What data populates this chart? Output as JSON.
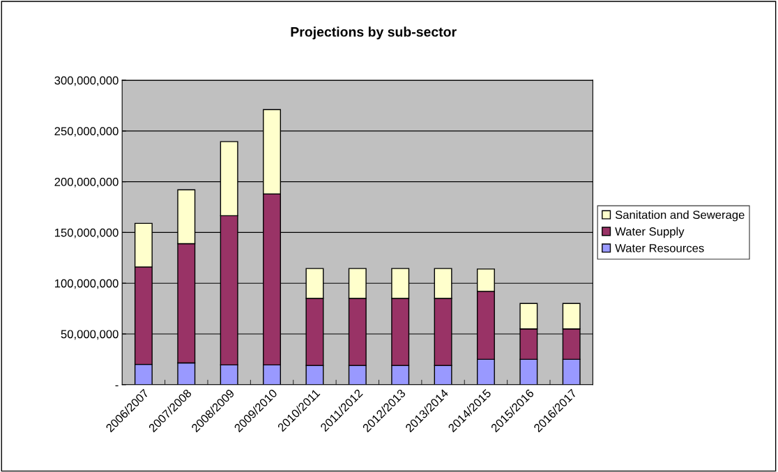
{
  "chart_data": {
    "type": "bar",
    "title": "Projections by sub-sector",
    "stacked": true,
    "categories": [
      "2006/2007",
      "2007/2008",
      "2008/2009",
      "2009/2010",
      "2010/2011",
      "2011/2012",
      "2012/2013",
      "2013/2014",
      "2014/2015",
      "2015/2016",
      "2016/2017"
    ],
    "series": [
      {
        "name": "Water Resources",
        "color": "#9999ff",
        "values": [
          20000000,
          21500000,
          19500000,
          19500000,
          19000000,
          19000000,
          19000000,
          19000000,
          25000000,
          25000000,
          25000000
        ]
      },
      {
        "name": "Water Supply",
        "color": "#993366",
        "values": [
          96000000,
          117500000,
          147000000,
          168500000,
          66000000,
          66000000,
          66000000,
          66000000,
          67000000,
          30000000,
          30000000
        ]
      },
      {
        "name": "Sanitation and Sewerage",
        "color": "#ffffcc",
        "values": [
          43000000,
          53000000,
          73000000,
          83000000,
          29500000,
          29500000,
          29500000,
          29500000,
          22000000,
          25000000,
          25000000
        ]
      }
    ],
    "ylim": [
      0,
      300000000
    ],
    "yticks": [
      {
        "value": 0,
        "label": "-"
      },
      {
        "value": 50000000,
        "label": "50,000,000"
      },
      {
        "value": 100000000,
        "label": "100,000,000"
      },
      {
        "value": 150000000,
        "label": "150,000,000"
      },
      {
        "value": 200000000,
        "label": "200,000,000"
      },
      {
        "value": 250000000,
        "label": "250,000,000"
      },
      {
        "value": 300000000,
        "label": "300,000,000"
      }
    ],
    "grid": "y",
    "legend": "right"
  }
}
